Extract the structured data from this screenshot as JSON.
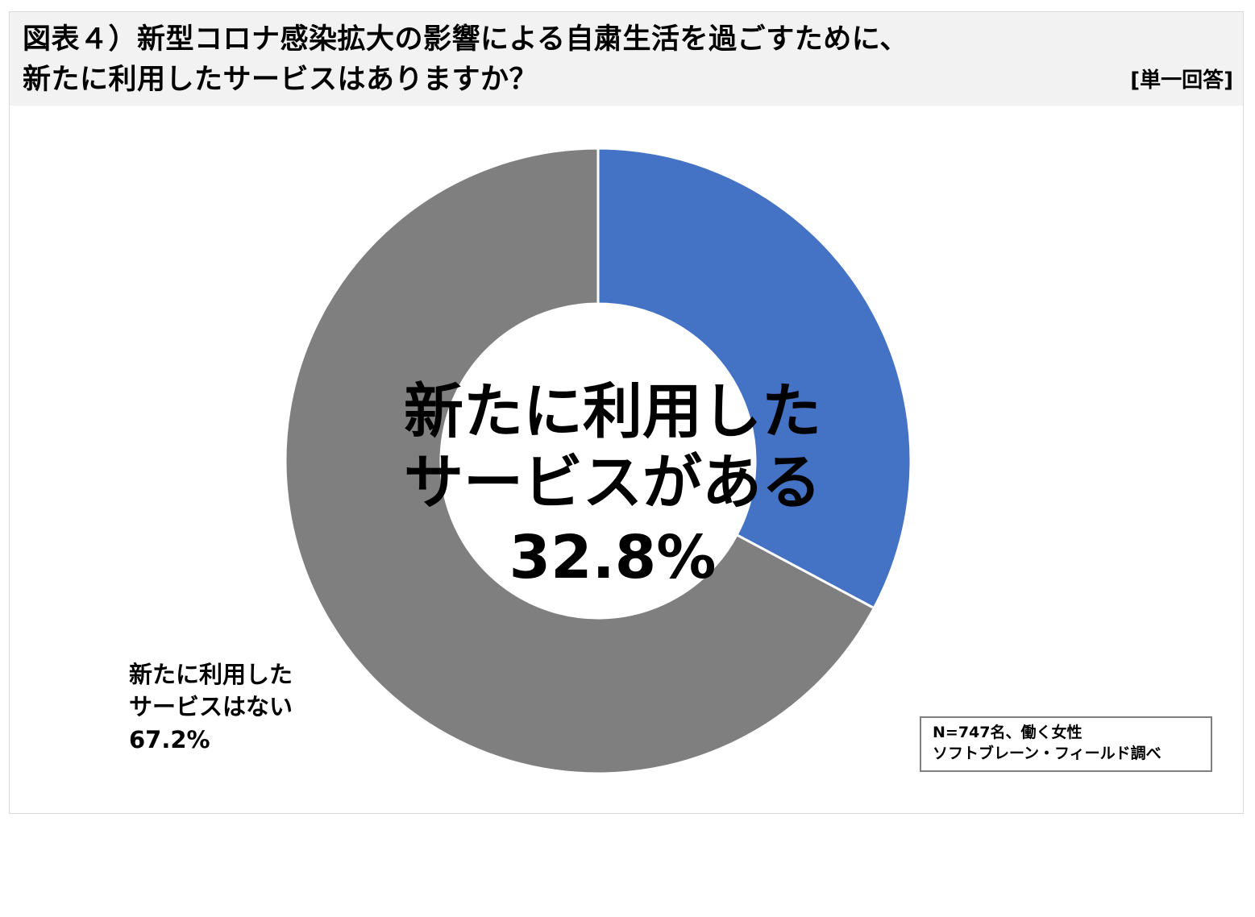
{
  "header": {
    "title_line1": "図表４）新型コロナ感染拡大の影響による自粛生活を過ごすために、",
    "title_line2": "新たに利用したサービスはありますか？",
    "answer_type": "[単一回答]"
  },
  "chart_data": {
    "type": "pie",
    "variant": "donut",
    "title": "図表４）新型コロナ感染拡大の影響による自粛生活を過ごすために、新たに利用したサービスはありますか？",
    "slices": [
      {
        "label": "新たに利用したサービスがある",
        "value": 32.8,
        "value_label": "32.8%",
        "color": "#4472c4"
      },
      {
        "label": "新たに利用したサービスはない",
        "value": 67.2,
        "value_label": "67.2%",
        "color": "#7f7f7f"
      }
    ],
    "center_label": {
      "line1": "新たに利用した",
      "line2": "サービスがある",
      "line3": "32.8%"
    },
    "outer_label": {
      "line1": "新たに利用した",
      "line2": "サービスはない",
      "line3": "67.2%"
    },
    "start_angle_deg": 0,
    "direction": "clockwise"
  },
  "note": {
    "line1": "N=747名、働く女性",
    "line2": "ソフトブレーン・フィールド調べ"
  }
}
